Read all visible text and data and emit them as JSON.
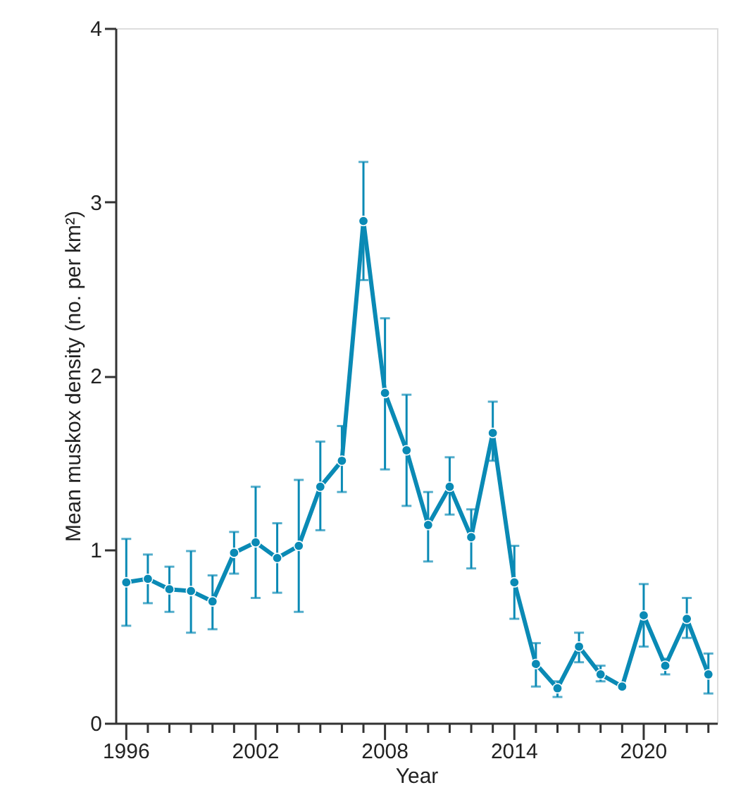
{
  "chart_data": {
    "type": "line",
    "xlabel": "Year",
    "ylabel": "Mean muskox density (no. per km²)",
    "x": [
      1996,
      1997,
      1998,
      1999,
      2000,
      2001,
      2002,
      2003,
      2004,
      2005,
      2006,
      2007,
      2008,
      2009,
      2010,
      2011,
      2012,
      2013,
      2014,
      2015,
      2016,
      2017,
      2018,
      2019,
      2020,
      2021,
      2022,
      2023
    ],
    "series": [
      {
        "color": "#0a8ab5",
        "values": [
          0.81,
          0.83,
          0.77,
          0.76,
          0.7,
          0.98,
          1.04,
          0.95,
          1.02,
          1.36,
          1.51,
          2.89,
          1.9,
          1.57,
          1.14,
          1.36,
          1.07,
          1.67,
          0.81,
          0.34,
          0.2,
          0.44,
          0.28,
          0.21,
          0.62,
          0.33,
          0.6,
          0.28
        ],
        "errors": [
          [
            0.56,
            1.06
          ],
          [
            0.69,
            0.97
          ],
          [
            0.64,
            0.9
          ],
          [
            0.52,
            0.99
          ],
          [
            0.54,
            0.85
          ],
          [
            0.86,
            1.1
          ],
          [
            0.72,
            1.36
          ],
          [
            0.75,
            1.15
          ],
          [
            0.64,
            1.4
          ],
          [
            1.11,
            1.62
          ],
          [
            1.33,
            1.71
          ],
          [
            2.55,
            3.23
          ],
          [
            1.46,
            2.33
          ],
          [
            1.25,
            1.89
          ],
          [
            0.93,
            1.33
          ],
          [
            1.2,
            1.53
          ],
          [
            0.89,
            1.23
          ],
          [
            1.51,
            1.85
          ],
          [
            0.6,
            1.02
          ],
          [
            0.21,
            0.46
          ],
          [
            0.15,
            0.24
          ],
          [
            0.35,
            0.52
          ],
          [
            0.24,
            0.33
          ],
          null,
          [
            0.44,
            0.8
          ],
          [
            0.28,
            0.37
          ],
          [
            0.49,
            0.72
          ],
          [
            0.17,
            0.4
          ]
        ]
      }
    ],
    "xlim": [
      1995.5,
      2023.4
    ],
    "xticks": [
      1996,
      {
        "value": 1997,
        "label": null
      },
      {
        "value": 1998,
        "label": null
      },
      {
        "value": 1999,
        "label": null
      },
      {
        "value": 2000,
        "label": null
      },
      {
        "value": 2001,
        "label": null
      },
      2002,
      {
        "value": 2003,
        "label": null
      },
      {
        "value": 2004,
        "label": null
      },
      {
        "value": 2005,
        "label": null
      },
      {
        "value": 2006,
        "label": null
      },
      {
        "value": 2007,
        "label": null
      },
      2008,
      {
        "value": 2009,
        "label": null
      },
      {
        "value": 2010,
        "label": null
      },
      {
        "value": 2011,
        "label": null
      },
      {
        "value": 2012,
        "label": null
      },
      {
        "value": 2013,
        "label": null
      },
      2014,
      {
        "value": 2015,
        "label": null
      },
      {
        "value": 2016,
        "label": null
      },
      {
        "value": 2017,
        "label": null
      },
      {
        "value": 2018,
        "label": null
      },
      {
        "value": 2019,
        "label": null
      },
      2020,
      {
        "value": 2021,
        "label": null
      },
      {
        "value": 2022,
        "label": null
      },
      {
        "value": 2023,
        "label": null
      }
    ],
    "ylim": [
      0,
      4
    ],
    "yticks": [
      0,
      1,
      2,
      3,
      4
    ],
    "grid": false,
    "marker": "circle",
    "line_style": "solid"
  }
}
